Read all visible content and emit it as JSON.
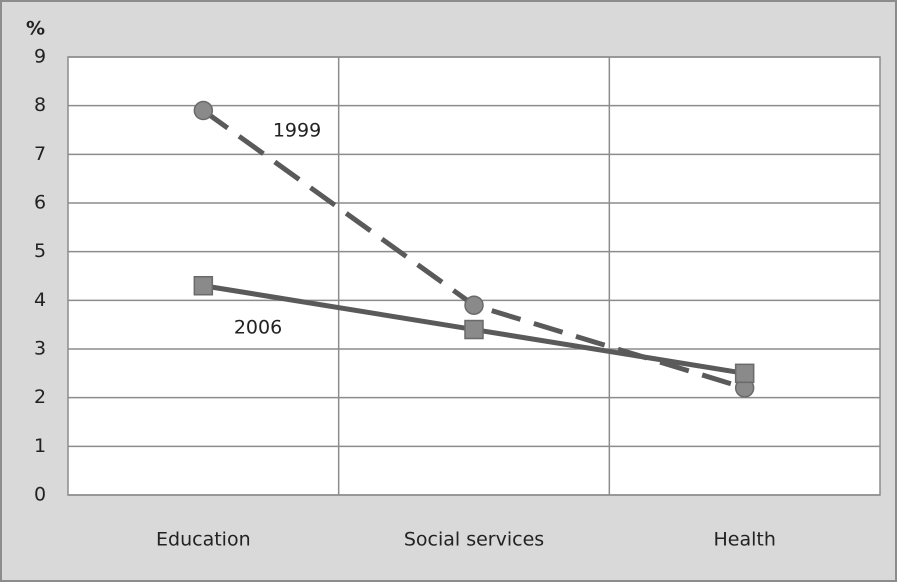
{
  "chart_data": {
    "type": "line",
    "y_label": "%",
    "categories": [
      "Education",
      "Social services",
      "Health"
    ],
    "series": [
      {
        "name": "1999",
        "color": "#5a5a5a",
        "dash": true,
        "marker": "circle",
        "values": [
          7.9,
          3.9,
          2.2
        ]
      },
      {
        "name": "2006",
        "color": "#5a5a5a",
        "dash": false,
        "marker": "square",
        "values": [
          4.3,
          3.4,
          2.5
        ]
      }
    ],
    "ylim": [
      0,
      9
    ],
    "yticks": [
      0,
      1,
      2,
      3,
      4,
      5,
      6,
      7,
      8,
      9
    ],
    "grid": true
  }
}
